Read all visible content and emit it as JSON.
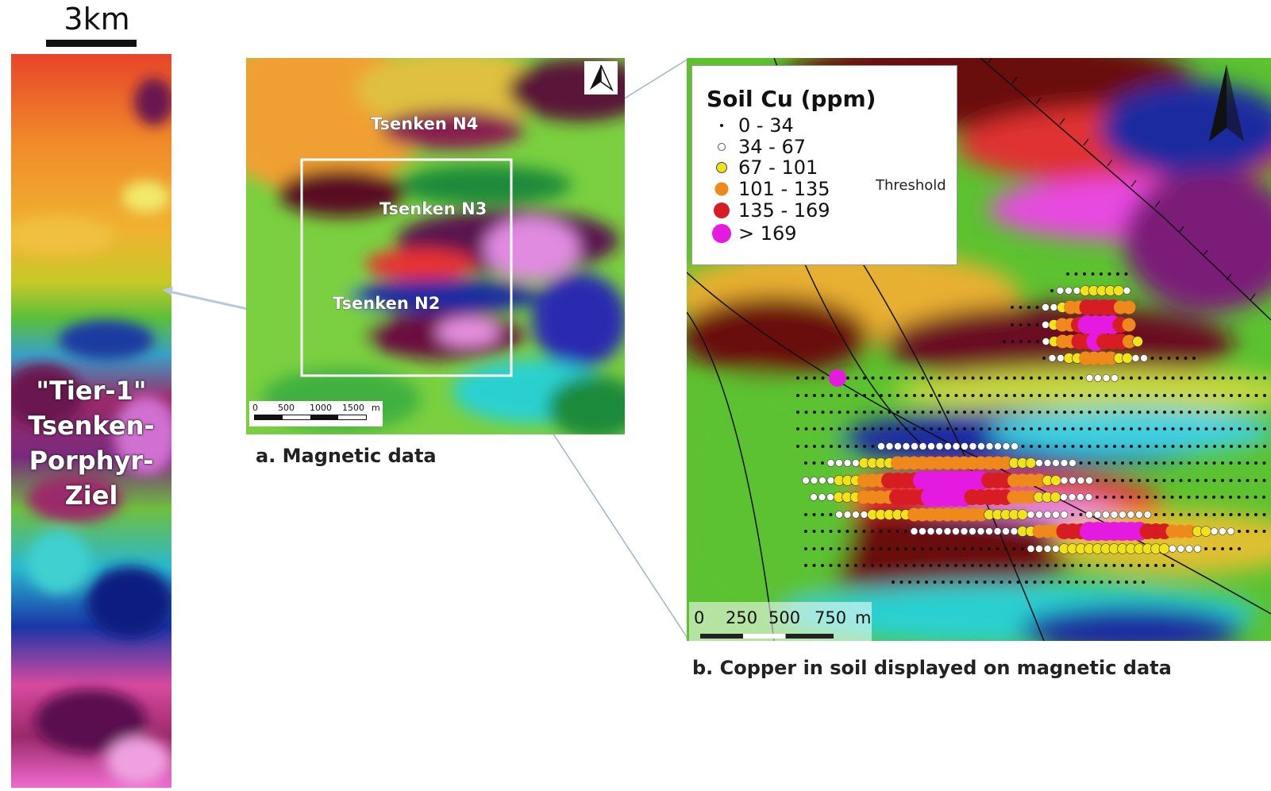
{
  "scale": {
    "label": "3km"
  },
  "left_panel": {
    "label_lines": [
      "\"Tier-1\"",
      "Tsenken-",
      "Porphyr-",
      "Ziel"
    ]
  },
  "map_a": {
    "caption": "a. Magnetic data",
    "labels": {
      "n4": "Tsenken N4",
      "n3": "Tsenken N3",
      "n2": "Tsenken N2"
    },
    "scalebar": {
      "ticks": [
        "0",
        "500",
        "1000",
        "1500",
        "m"
      ]
    },
    "north_icon": "north-arrow-icon"
  },
  "map_b": {
    "caption": "b. Copper in soil displayed on magnetic data",
    "legend": {
      "title": "Soil Cu (ppm)",
      "threshold_label": "Threshold",
      "items": [
        {
          "label": "0 - 34",
          "color": "#111111",
          "size": 4
        },
        {
          "label": "34 - 67",
          "color": "#ffffff",
          "size": 9
        },
        {
          "label": "67 - 101",
          "color": "#f2e21a",
          "size": 13
        },
        {
          "label": "101 - 135",
          "color": "#f0891c",
          "size": 17
        },
        {
          "label": "135 - 169",
          "color": "#d81c24",
          "size": 20
        },
        {
          "label": "> 169",
          "color": "#e41ae0",
          "size": 24
        }
      ]
    },
    "scalebar": {
      "ticks": [
        "0",
        "250",
        "500",
        "750",
        "m"
      ]
    },
    "north_icon": "north-arrow-icon"
  },
  "colors": {
    "frame": "#ffffff",
    "connector": "#9fb4cc"
  }
}
